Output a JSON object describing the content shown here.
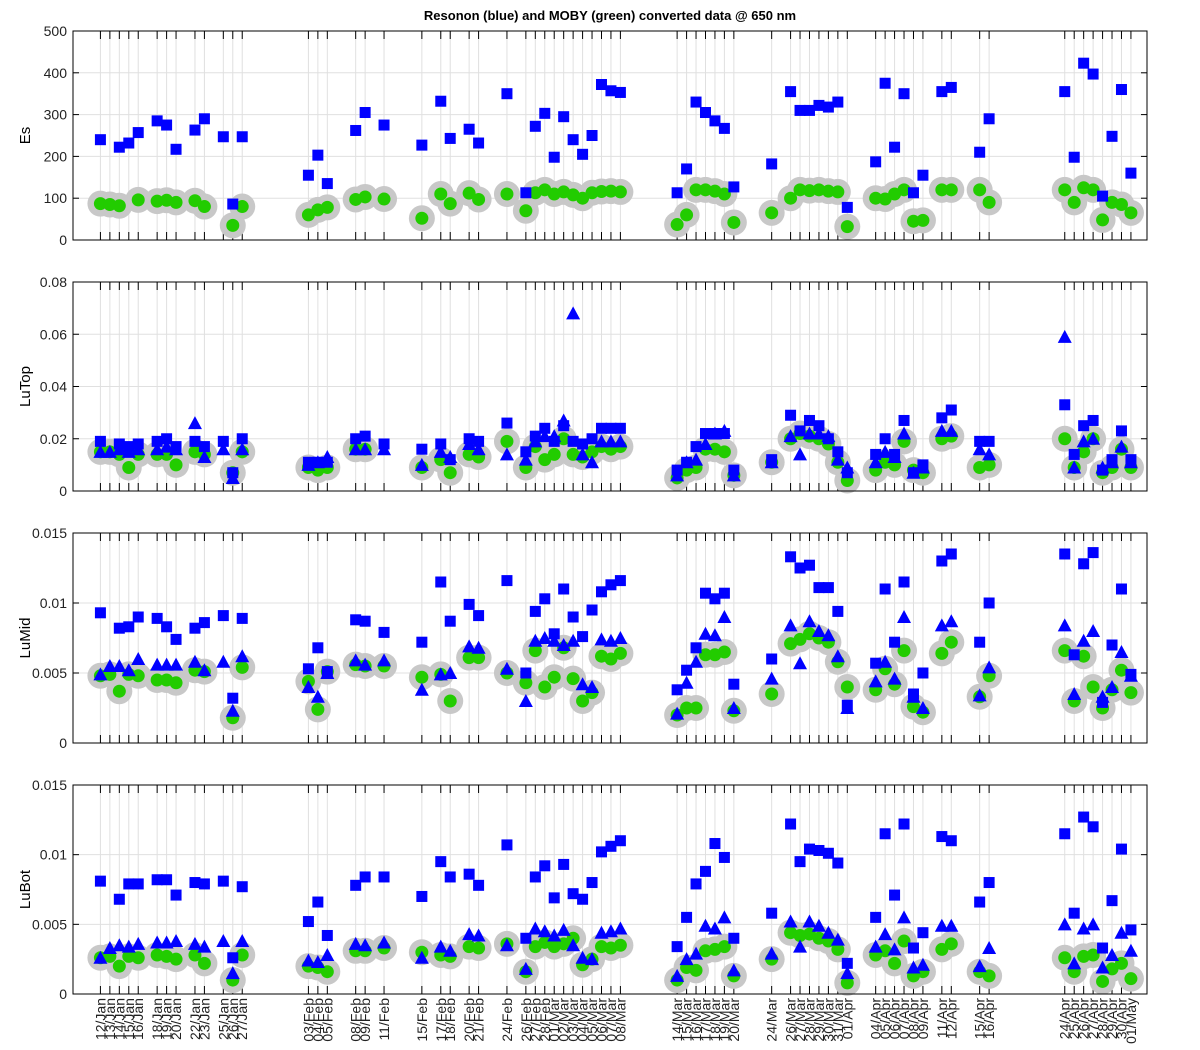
{
  "figure_title": "Resonon (blue) and MOBY (green) converted data @ 650 nm",
  "colors": {
    "resonon": "#0000ff",
    "moby": "#22cc00",
    "moby_halo": "#c8c8c8",
    "grid": "#e0e0e0",
    "axis": "#000000"
  },
  "date_ticks": [
    "12/Jan",
    "13/Jan",
    "14/Jan",
    "15/Jan",
    "16/Jan",
    "18/Jan",
    "19/Jan",
    "20/Jan",
    "22/Jan",
    "23/Jan",
    "25/Jan",
    "26/Jan",
    "27/Jan",
    "03/Feb",
    "04/Feb",
    "05/Feb",
    "08/Feb",
    "09/Feb",
    "11/Feb",
    "15/Feb",
    "17/Feb",
    "18/Feb",
    "20/Feb",
    "21/Feb",
    "24/Feb",
    "26/Feb",
    "27/Feb",
    "28/Feb",
    "01/Mar",
    "02/Mar",
    "03/Mar",
    "04/Mar",
    "05/Mar",
    "06/Mar",
    "07/Mar",
    "08/Mar",
    "14/Mar",
    "15/Mar",
    "16/Mar",
    "17/Mar",
    "18/Mar",
    "19/Mar",
    "20/Mar",
    "24/Mar",
    "26/Mar",
    "27/Mar",
    "28/Mar",
    "29/Mar",
    "30/Mar",
    "31/Mar",
    "01/Apr",
    "04/Apr",
    "05/Apr",
    "06/Apr",
    "07/Apr",
    "08/Apr",
    "09/Apr",
    "11/Apr",
    "12/Apr",
    "15/Apr",
    "16/Apr",
    "24/Apr",
    "25/Apr",
    "26/Apr",
    "27/Apr",
    "28/Apr",
    "29/Apr",
    "30/Apr",
    "01/May"
  ],
  "chart_data": [
    {
      "type": "scatter",
      "ylabel": "Es",
      "ylim": [
        0,
        500
      ],
      "yticks": [
        "0",
        "100",
        "200",
        "300",
        "400",
        "500"
      ],
      "grid": true,
      "series": [
        {
          "name": "Resonon",
          "marker": "square",
          "values": [
            240,
            null,
            222,
            232,
            257,
            285,
            275,
            217,
            263,
            290,
            247,
            86,
            247,
            155,
            203,
            135,
            262,
            305,
            275,
            227,
            332,
            243,
            265,
            232,
            350,
            113,
            272,
            303,
            198,
            295,
            240,
            205,
            250,
            372,
            357,
            353,
            113,
            170,
            330,
            305,
            285,
            267,
            127,
            182,
            355,
            310,
            310,
            322,
            318,
            330,
            78,
            187,
            375,
            222,
            350,
            113,
            155,
            355,
            365,
            210,
            290,
            355,
            198,
            423,
            397,
            105,
            248,
            360,
            160
          ]
        },
        {
          "name": "MOBY",
          "marker": "circle",
          "values": [
            87,
            85,
            82,
            null,
            96,
            93,
            95,
            90,
            94,
            80,
            null,
            35,
            80,
            60,
            72,
            78,
            97,
            103,
            98,
            52,
            110,
            87,
            112,
            97,
            110,
            70,
            113,
            120,
            110,
            115,
            108,
            100,
            113,
            116,
            117,
            115,
            37,
            60,
            120,
            120,
            117,
            110,
            42,
            65,
            100,
            120,
            118,
            120,
            117,
            115,
            32,
            100,
            98,
            110,
            120,
            45,
            47,
            120,
            120,
            120,
            90,
            120,
            90,
            125,
            120,
            48,
            90,
            85,
            65
          ]
        }
      ]
    },
    {
      "type": "scatter",
      "ylabel": "LuTop",
      "ylim": [
        0,
        0.08
      ],
      "yticks": [
        "0",
        "0.02",
        "0.04",
        "0.06",
        "0.08"
      ],
      "grid": true,
      "series": [
        {
          "name": "Resonon",
          "marker": "square",
          "values": [
            0.019,
            null,
            0.018,
            0.017,
            0.018,
            0.019,
            0.02,
            0.017,
            0.019,
            0.017,
            0.019,
            0.007,
            0.02,
            0.011,
            0.011,
            0.011,
            0.02,
            0.021,
            0.018,
            0.016,
            0.018,
            0.012,
            0.02,
            0.019,
            0.026,
            0.015,
            0.021,
            0.024,
            0.019,
            0.025,
            0.019,
            0.018,
            0.02,
            0.024,
            0.024,
            0.024,
            0.008,
            0.011,
            0.017,
            0.022,
            0.022,
            0.022,
            0.008,
            0.012,
            0.029,
            0.023,
            0.027,
            0.025,
            0.02,
            0.015,
            0.007,
            0.014,
            0.02,
            0.014,
            0.027,
            0.007,
            0.01,
            0.028,
            0.031,
            0.019,
            0.019,
            0.033,
            0.014,
            0.025,
            0.027,
            0.008,
            0.012,
            0.023,
            0.012
          ]
        },
        {
          "name": "Resonon",
          "marker": "triangle",
          "values": [
            0.015,
            0.015,
            0.016,
            0.015,
            0.016,
            0.016,
            0.017,
            0.016,
            0.026,
            0.013,
            0.016,
            0.005,
            0.016,
            0.01,
            0.011,
            0.013,
            0.016,
            0.016,
            0.016,
            0.01,
            0.015,
            0.013,
            0.018,
            0.016,
            0.014,
            0.012,
            0.019,
            0.021,
            0.021,
            0.027,
            0.068,
            0.014,
            0.011,
            0.019,
            0.019,
            0.019,
            0.006,
            0.011,
            0.012,
            0.018,
            0.022,
            0.023,
            0.006,
            0.011,
            0.021,
            0.014,
            0.022,
            0.022,
            0.021,
            0.012,
            0.009,
            0.011,
            0.015,
            0.013,
            0.022,
            0.007,
            0.009,
            0.023,
            0.023,
            0.016,
            0.014,
            0.059,
            0.009,
            0.019,
            0.02,
            0.009,
            0.011,
            0.017,
            0.011
          ]
        },
        {
          "name": "MOBY",
          "marker": "circle",
          "values": [
            0.015,
            0.015,
            0.014,
            0.009,
            0.014,
            0.014,
            0.014,
            0.01,
            0.015,
            0.014,
            null,
            0.007,
            0.015,
            0.009,
            0.008,
            0.009,
            0.016,
            0.016,
            null,
            0.009,
            0.012,
            0.007,
            0.014,
            0.013,
            0.019,
            0.009,
            0.017,
            0.012,
            0.014,
            0.02,
            0.014,
            0.013,
            0.015,
            0.017,
            0.016,
            0.017,
            0.005,
            0.008,
            0.009,
            0.016,
            0.016,
            0.015,
            0.006,
            0.011,
            0.02,
            0.022,
            0.021,
            0.02,
            0.018,
            0.011,
            0.004,
            0.008,
            0.011,
            0.01,
            0.019,
            0.008,
            0.007,
            0.02,
            0.021,
            0.009,
            0.01,
            0.02,
            0.009,
            0.015,
            0.02,
            0.007,
            0.009,
            0.016,
            0.009
          ]
        }
      ]
    },
    {
      "type": "scatter",
      "ylabel": "LuMid",
      "ylim": [
        0,
        0.015
      ],
      "yticks": [
        "0",
        "0.005",
        "0.01",
        "0.015"
      ],
      "grid": true,
      "series": [
        {
          "name": "Resonon",
          "marker": "square",
          "values": [
            0.0093,
            null,
            0.0082,
            0.0083,
            0.009,
            0.0089,
            0.0083,
            0.0074,
            0.0082,
            0.0086,
            0.0091,
            0.0032,
            0.0089,
            0.0053,
            0.0068,
            0.0051,
            0.0088,
            0.0087,
            0.0079,
            0.0072,
            0.0115,
            0.0087,
            0.0099,
            0.0091,
            0.0116,
            0.005,
            0.0094,
            0.0103,
            0.0078,
            0.011,
            0.009,
            0.0076,
            0.0095,
            0.0108,
            0.0113,
            0.0116,
            0.0038,
            0.0052,
            0.0068,
            0.0107,
            0.0103,
            0.0107,
            0.0042,
            0.006,
            0.0133,
            0.0125,
            0.0127,
            0.0111,
            0.0111,
            0.0094,
            0.0027,
            0.0057,
            0.011,
            0.0072,
            0.0115,
            0.0035,
            0.005,
            0.013,
            0.0135,
            0.0072,
            0.01,
            0.0135,
            0.0063,
            0.0128,
            0.0136,
            0.0029,
            0.007,
            0.011,
            0.0049
          ]
        },
        {
          "name": "Resonon",
          "marker": "triangle",
          "values": [
            0.0049,
            0.0055,
            0.0055,
            0.0052,
            0.006,
            0.0056,
            0.0056,
            0.0056,
            0.0058,
            0.0052,
            0.0058,
            0.0023,
            0.0062,
            0.004,
            0.0033,
            0.005,
            0.0059,
            0.0056,
            0.0059,
            0.0038,
            0.0049,
            0.005,
            0.0069,
            0.0068,
            0.0053,
            0.003,
            0.0073,
            0.0075,
            0.0073,
            0.007,
            0.0073,
            0.0042,
            0.004,
            0.0074,
            0.0073,
            0.0075,
            0.0021,
            0.0043,
            0.0058,
            0.0078,
            0.0077,
            0.009,
            0.0025,
            0.0046,
            0.0084,
            0.0057,
            0.0087,
            0.008,
            0.0077,
            0.0062,
            0.0025,
            0.0044,
            0.0058,
            0.0046,
            0.009,
            0.0033,
            0.0025,
            0.0084,
            0.0087,
            0.0034,
            0.0054,
            0.0084,
            0.0035,
            0.0073,
            0.008,
            0.0033,
            0.004,
            0.0065,
            0.0048
          ]
        },
        {
          "name": "MOBY",
          "marker": "circle",
          "values": [
            0.0048,
            0.0049,
            0.0037,
            0.0049,
            0.0048,
            0.0045,
            0.0045,
            0.0043,
            0.0052,
            0.0051,
            null,
            0.0018,
            0.0054,
            0.0044,
            0.0024,
            0.0051,
            0.0056,
            0.0055,
            0.0055,
            0.0047,
            0.0049,
            0.003,
            0.0061,
            0.0061,
            0.005,
            0.0043,
            0.0066,
            0.004,
            0.0047,
            0.0068,
            0.0046,
            0.003,
            0.0036,
            0.0062,
            0.006,
            0.0064,
            0.002,
            0.0025,
            0.0025,
            0.0063,
            0.0063,
            0.0065,
            0.0023,
            0.0035,
            0.0071,
            0.0074,
            0.0078,
            0.0075,
            0.0072,
            0.0058,
            0.004,
            0.0038,
            0.0053,
            0.0042,
            0.0066,
            0.0026,
            0.0022,
            0.0064,
            0.0072,
            0.0033,
            0.0048,
            0.0066,
            0.003,
            0.0062,
            0.004,
            0.0025,
            0.0038,
            0.0052,
            0.0036
          ]
        }
      ]
    },
    {
      "type": "scatter",
      "ylabel": "LuBot",
      "ylim": [
        0,
        0.015
      ],
      "yticks": [
        "0",
        "0.005",
        "0.01",
        "0.015"
      ],
      "grid": true,
      "series": [
        {
          "name": "Resonon",
          "marker": "square",
          "values": [
            0.0081,
            null,
            0.0068,
            0.0079,
            0.0079,
            0.0082,
            0.0082,
            0.0071,
            0.008,
            0.0079,
            0.0081,
            0.0026,
            0.0077,
            0.0052,
            0.0066,
            0.0042,
            0.0078,
            0.0084,
            0.0084,
            0.007,
            0.0095,
            0.0084,
            0.0086,
            0.0078,
            0.0107,
            0.004,
            0.0084,
            0.0092,
            0.0069,
            0.0093,
            0.0072,
            0.0068,
            0.008,
            0.0102,
            0.0106,
            0.011,
            0.0034,
            0.0055,
            0.0079,
            0.0088,
            0.0108,
            0.0098,
            0.004,
            0.0058,
            0.0122,
            0.0095,
            0.0104,
            0.0103,
            0.0101,
            0.0094,
            0.0022,
            0.0055,
            0.0115,
            0.0071,
            0.0122,
            0.0033,
            0.0044,
            0.0113,
            0.011,
            0.0066,
            0.008,
            0.0115,
            0.0058,
            0.0127,
            0.012,
            0.0033,
            0.0067,
            0.0104,
            0.0046
          ]
        },
        {
          "name": "Resonon",
          "marker": "triangle",
          "values": [
            0.0026,
            0.0033,
            0.0035,
            0.0034,
            0.0036,
            0.0037,
            0.0037,
            0.0038,
            0.0036,
            0.0034,
            0.0038,
            0.0015,
            0.0038,
            0.0024,
            0.0023,
            0.0028,
            0.0036,
            0.0035,
            0.0037,
            0.0026,
            0.0034,
            0.0031,
            0.0043,
            0.0042,
            0.0035,
            0.0018,
            0.0047,
            0.0045,
            0.0042,
            0.0046,
            0.0035,
            0.0026,
            0.0025,
            0.0044,
            0.0045,
            0.0047,
            0.0013,
            0.0025,
            0.0029,
            0.0049,
            0.0047,
            0.0055,
            0.0017,
            0.0029,
            0.0052,
            0.0034,
            0.0052,
            0.0049,
            0.0044,
            0.0039,
            0.0015,
            0.0034,
            0.0043,
            0.0032,
            0.0055,
            0.0019,
            0.0021,
            0.0049,
            0.0049,
            0.002,
            0.0033,
            0.005,
            0.0022,
            0.0047,
            0.005,
            0.0019,
            0.0028,
            0.0044,
            0.0031
          ]
        },
        {
          "name": "MOBY",
          "marker": "circle",
          "values": [
            0.0026,
            0.0027,
            0.002,
            0.0027,
            0.0026,
            0.0028,
            0.0027,
            0.0025,
            0.0028,
            0.0022,
            null,
            0.001,
            0.0028,
            0.002,
            0.0019,
            0.0016,
            0.0031,
            0.0031,
            0.0033,
            0.003,
            0.0028,
            0.0027,
            0.0034,
            0.0033,
            0.0036,
            0.0016,
            0.0034,
            0.0037,
            0.0034,
            0.0036,
            0.004,
            0.0021,
            0.0025,
            0.0034,
            0.0033,
            0.0035,
            0.001,
            0.0019,
            0.0017,
            0.0031,
            0.0032,
            0.0034,
            0.0013,
            0.0025,
            0.0044,
            0.0042,
            0.0043,
            0.004,
            0.0038,
            0.0032,
            0.0008,
            0.0028,
            0.0031,
            0.0022,
            0.0038,
            0.0013,
            0.0016,
            0.0032,
            0.0036,
            0.0016,
            0.0013,
            0.0026,
            0.0016,
            0.0027,
            0.0028,
            0.0009,
            0.0018,
            0.0022,
            0.0011
          ]
        }
      ]
    }
  ]
}
